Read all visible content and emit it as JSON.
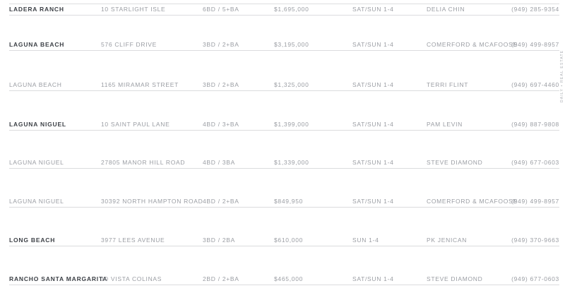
{
  "colors": {
    "background": "#ffffff",
    "text_muted": "#9a9da3",
    "text_emphasis": "#3d4147",
    "rule": "#dbdcde"
  },
  "edge_text": "DAILY • REAL ESTATE",
  "rows": [
    {
      "city": "LADERA RANCH",
      "address": "10 STARLIGHT ISLE",
      "beds_baths": "6BD / 5+BA",
      "price": "$1,695,000",
      "open_house": "SAT/SUN 1-4",
      "agent": "DELIA CHIN",
      "phone": "(949) 285-9354"
    },
    {
      "city": "LAGUNA BEACH",
      "address": "576 CLIFF DRIVE",
      "beds_baths": "3BD / 2+BA",
      "price": "$3,195,000",
      "open_house": "SAT/SUN 1-4",
      "agent": "COMERFORD & MCAFOOSE",
      "phone": "(949) 499-8957"
    },
    {
      "city": "LAGUNA BEACH",
      "address": "1165 MIRAMAR STREET",
      "beds_baths": "3BD / 2+BA",
      "price": "$1,325,000",
      "open_house": "SAT/SUN 1-4",
      "agent": "TERRI FLINT",
      "phone": "(949) 697-4460"
    },
    {
      "city": "LAGUNA NIGUEL",
      "address": "10 SAINT PAUL LANE",
      "beds_baths": "4BD / 3+BA",
      "price": "$1,399,000",
      "open_house": "SAT/SUN 1-4",
      "agent": "PAM LEVIN",
      "phone": "(949) 887-9808"
    },
    {
      "city": "LAGUNA NIGUEL",
      "address": "27805 MANOR HILL ROAD",
      "beds_baths": "4BD / 3BA",
      "price": "$1,339,000",
      "open_house": "SAT/SUN 1-4",
      "agent": "STEVE DIAMOND",
      "phone": "(949) 677-0603"
    },
    {
      "city": "LAGUNA NIGUEL",
      "address": "30392 NORTH HAMPTON ROAD",
      "beds_baths": "4BD / 2+BA",
      "price": "$849,950",
      "open_house": "SAT/SUN 1-4",
      "agent": "COMERFORD & MCAFOOSE",
      "phone": "(949) 499-8957"
    },
    {
      "city": "LONG BEACH",
      "address": "3977 LEES AVENUE",
      "beds_baths": "3BD / 2BA",
      "price": "$610,000",
      "open_house": "SUN 1-4",
      "agent": "PK JENICAN",
      "phone": "(949) 370-9663"
    },
    {
      "city": "RANCHO SANTA MARGARITA",
      "address": "10 VISTA COLINAS",
      "beds_baths": "2BD / 2+BA",
      "price": "$465,000",
      "open_house": "SAT/SUN 1-4",
      "agent": "STEVE DIAMOND",
      "phone": "(949) 677-0603"
    }
  ]
}
